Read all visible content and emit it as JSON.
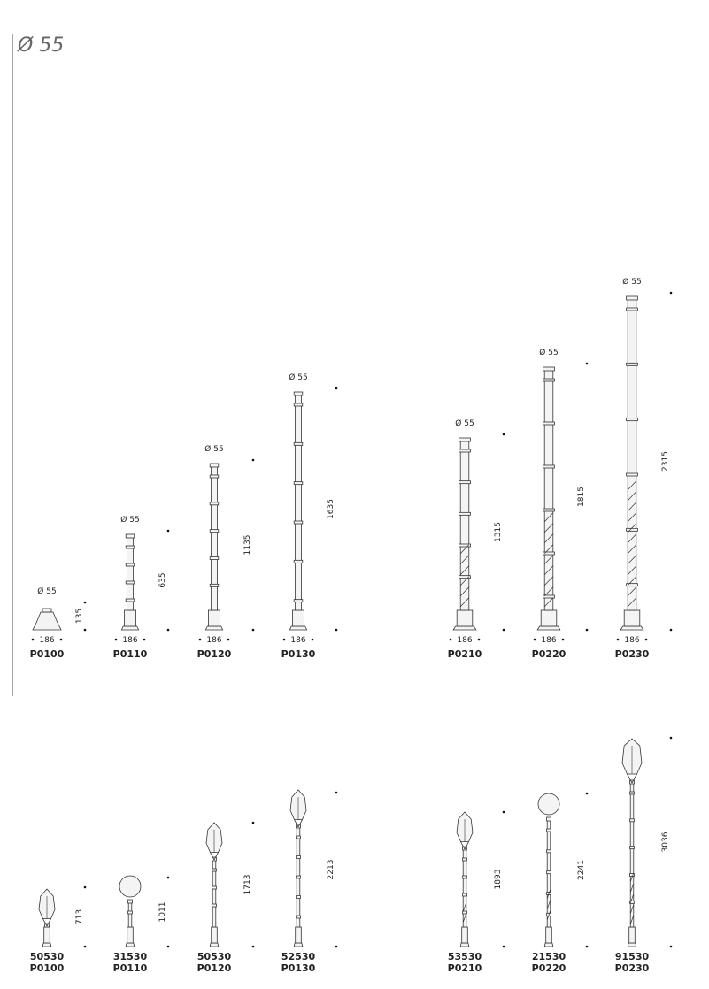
{
  "title": "Ø 55",
  "posts": [
    {
      "diameter": "Ø 55",
      "height": 135,
      "width": 186,
      "code": "P0100"
    },
    {
      "diameter": "Ø 55",
      "height": 635,
      "width": 186,
      "code": "P0110"
    },
    {
      "diameter": "Ø 55",
      "height": 1135,
      "width": 186,
      "code": "P0120"
    },
    {
      "diameter": "Ø 55",
      "height": 1635,
      "width": 186,
      "code": "P0130"
    },
    {
      "diameter": "Ø 55",
      "height": 1315,
      "width": 186,
      "code": "P0210"
    },
    {
      "diameter": "Ø 55",
      "height": 1815,
      "width": 186,
      "code": "P0220"
    },
    {
      "diameter": "Ø 55",
      "height": 2315,
      "width": 186,
      "code": "P0230"
    }
  ],
  "lamps": [
    {
      "lamp": "50530",
      "post": "P0100",
      "height": 713
    },
    {
      "lamp": "31530",
      "post": "P0110",
      "height": 1011
    },
    {
      "lamp": "50530",
      "post": "P0120",
      "height": 1713
    },
    {
      "lamp": "52530",
      "post": "P0130",
      "height": 2213
    },
    {
      "lamp": "53530",
      "post": "P0210",
      "height": 1893
    },
    {
      "lamp": "21530",
      "post": "P0220",
      "height": 2241
    },
    {
      "lamp": "91530",
      "post": "P0230",
      "height": 3036
    }
  ]
}
